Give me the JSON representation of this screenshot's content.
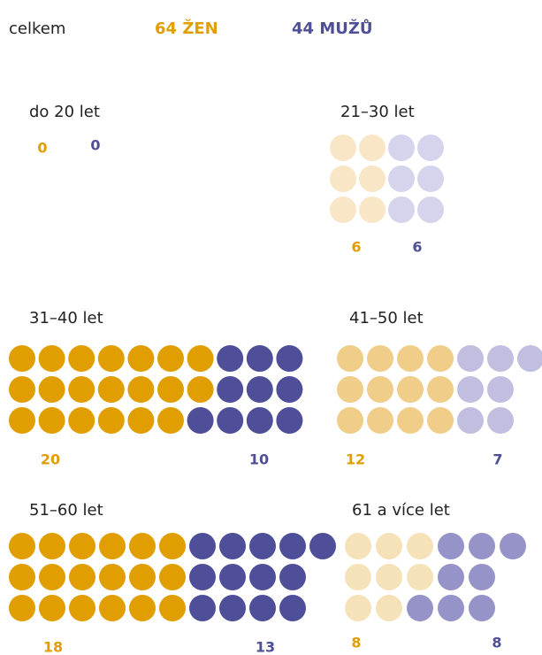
{
  "chart_data": {
    "type": "pictogram",
    "summary": {
      "label": "celkem",
      "women": "64 ŽEN",
      "men": "44 MUŽŮ"
    },
    "categories": [
      "do 20 let",
      "21–30 let",
      "31–40 let",
      "41–50 let",
      "51–60 let",
      "61 a více let"
    ],
    "series": [
      {
        "name": "ženy",
        "color": "#e09e00",
        "colors": [
          "#e09e00",
          "#f8e6c6",
          "#e09e00",
          "#f0cd88",
          "#e09e00",
          "#f6e2b8"
        ],
        "values": [
          0,
          6,
          20,
          12,
          18,
          8
        ]
      },
      {
        "name": "muži",
        "color": "#4e4e99",
        "colors": [
          "#4e4e99",
          "#d6d4ec",
          "#4e4e99",
          "#c1bee0",
          "#4e4e99",
          "#9593c8"
        ],
        "values": [
          0,
          6,
          10,
          7,
          13,
          8
        ]
      }
    ]
  }
}
